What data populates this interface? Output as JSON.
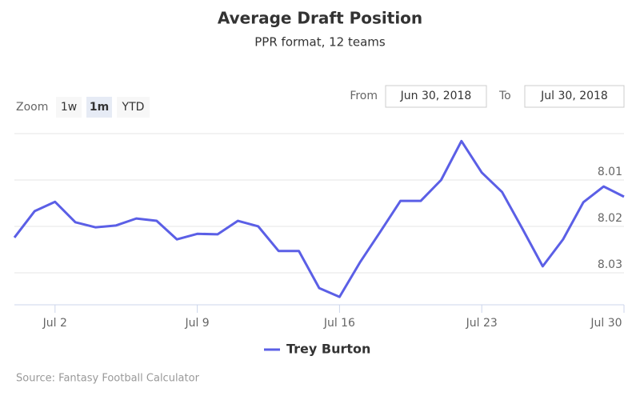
{
  "chart_data": {
    "type": "line",
    "title": "Average Draft Position",
    "subtitle": "PPR format, 12 teams",
    "categories": [
      null,
      null,
      "Jul 2",
      null,
      null,
      null,
      null,
      null,
      null,
      "Jul 9",
      null,
      null,
      null,
      null,
      null,
      null,
      "Jul 16",
      null,
      null,
      null,
      null,
      null,
      null,
      "Jul 23",
      null,
      null,
      null,
      null,
      null,
      null,
      "Jul 30"
    ],
    "series": [
      {
        "name": "Trey Burton",
        "color": "#5b5fe6",
        "values": [
          8.0224,
          8.0167,
          8.0147,
          8.0191,
          8.0202,
          8.0198,
          8.0183,
          8.0188,
          8.0228,
          8.0216,
          8.0217,
          8.0188,
          8.02,
          8.0253,
          8.0253,
          8.0333,
          8.0352,
          8.0278,
          8.0212,
          8.0145,
          8.0145,
          8.01,
          8.0016,
          8.0084,
          8.0126,
          8.0205,
          8.0286,
          8.0228,
          8.0148,
          8.0114,
          8.0136
        ]
      }
    ],
    "ylim": [
      8.0,
      8.0369
    ],
    "yticks": [
      8.01,
      8.02,
      8.03
    ],
    "y_reversed": true,
    "grid": true,
    "legend": "bottom",
    "source": "Source: Fantasy Football Calculator"
  },
  "controls": {
    "zoom_label": "Zoom",
    "buttons": [
      "1w",
      "1m",
      "YTD"
    ],
    "selected": 1,
    "from_label": "From",
    "from": "Jun 30, 2018",
    "to_label": "To",
    "to": "Jul 30, 2018"
  }
}
